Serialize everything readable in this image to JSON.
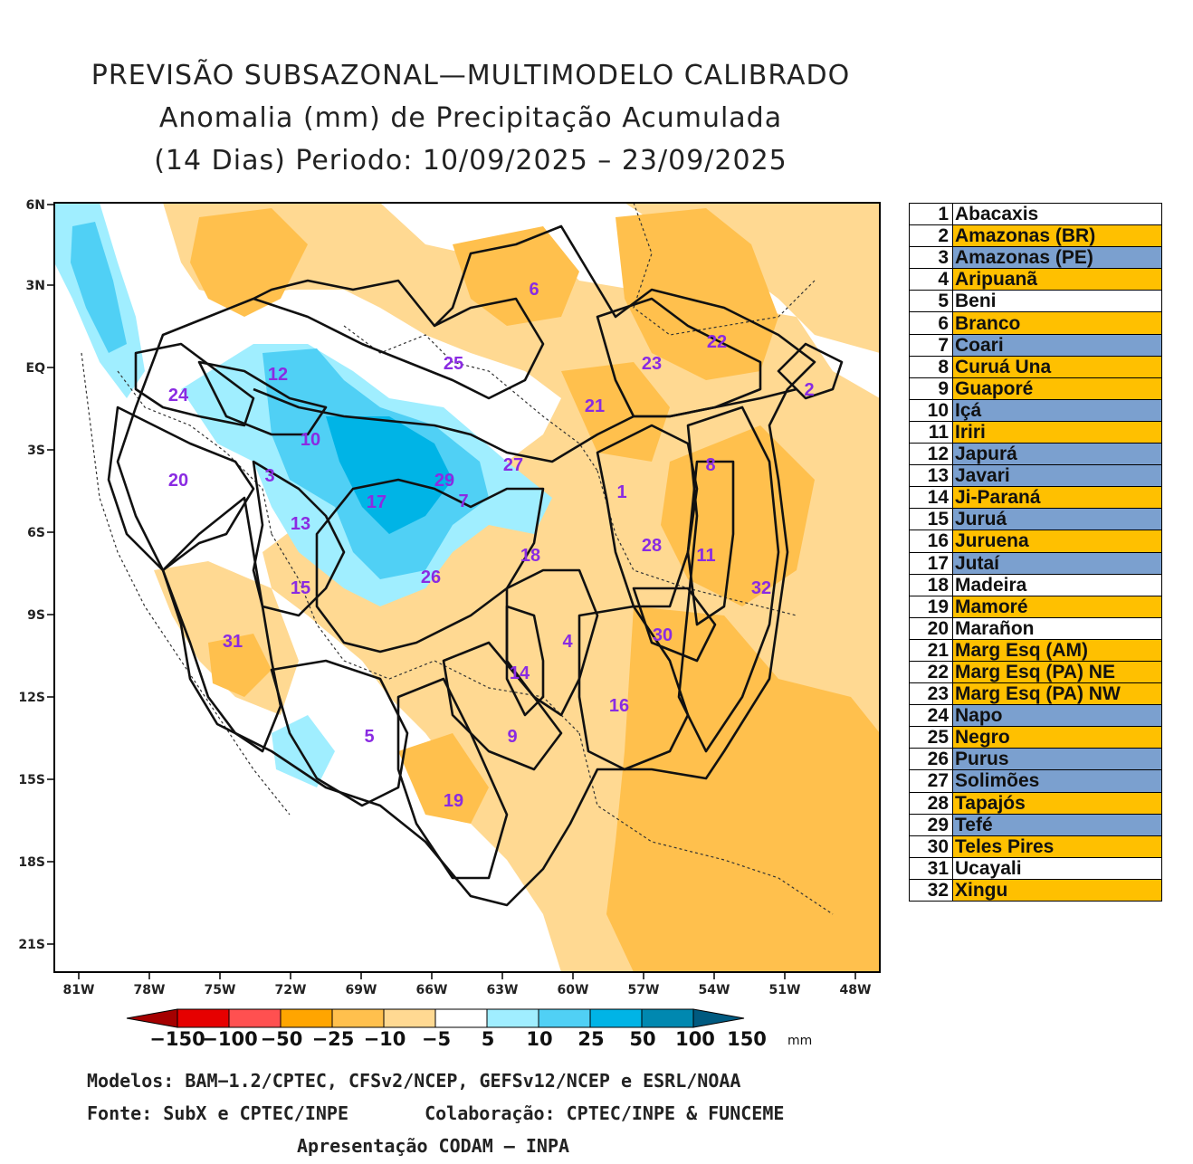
{
  "title": {
    "line1": "PREVISÃO SUBSAZONAL—MULTIMODELO CALIBRADO",
    "line2": "Anomalia (mm) de Precipitação Acumulada",
    "line3": "(14 Dias) Periodo: 10/09/2025 – 23/09/2025"
  },
  "map": {
    "lat_labels": [
      "6N",
      "3N",
      "EQ",
      "3S",
      "6S",
      "9S",
      "12S",
      "15S",
      "18S",
      "21S"
    ],
    "lon_labels": [
      "81W",
      "78W",
      "75W",
      "72W",
      "69W",
      "66W",
      "63W",
      "60W",
      "57W",
      "54W",
      "51W",
      "48W"
    ],
    "region_labels": [
      "1",
      "2",
      "3",
      "4",
      "5",
      "6",
      "7",
      "8",
      "9",
      "10",
      "11",
      "12",
      "13",
      "14",
      "15",
      "16",
      "17",
      "18",
      "19",
      "20",
      "21",
      "22",
      "23",
      "24",
      "25",
      "26",
      "27",
      "28",
      "29",
      "30",
      "31",
      "32"
    ],
    "label_color": "#8a2be2"
  },
  "legend_rows": [
    {
      "num": "1",
      "name": "Abacaxis",
      "color": "#ffffff"
    },
    {
      "num": "2",
      "name": "Amazonas (BR)",
      "color": "#ffc000"
    },
    {
      "num": "3",
      "name": "Amazonas (PE)",
      "color": "#7ba0cf"
    },
    {
      "num": "4",
      "name": "Aripuanã",
      "color": "#ffc000"
    },
    {
      "num": "5",
      "name": "Beni",
      "color": "#ffffff"
    },
    {
      "num": "6",
      "name": "Branco",
      "color": "#ffc000"
    },
    {
      "num": "7",
      "name": "Coari",
      "color": "#7ba0cf"
    },
    {
      "num": "8",
      "name": "Curuá Una",
      "color": "#ffc000"
    },
    {
      "num": "9",
      "name": "Guaporé",
      "color": "#ffc000"
    },
    {
      "num": "10",
      "name": "Içá",
      "color": "#7ba0cf"
    },
    {
      "num": "11",
      "name": "Iriri",
      "color": "#ffc000"
    },
    {
      "num": "12",
      "name": "Japurá",
      "color": "#7ba0cf"
    },
    {
      "num": "13",
      "name": "Javari",
      "color": "#7ba0cf"
    },
    {
      "num": "14",
      "name": "Ji-Paraná",
      "color": "#ffc000"
    },
    {
      "num": "15",
      "name": "Juruá",
      "color": "#7ba0cf"
    },
    {
      "num": "16",
      "name": "Juruena",
      "color": "#ffc000"
    },
    {
      "num": "17",
      "name": "Jutaí",
      "color": "#7ba0cf"
    },
    {
      "num": "18",
      "name": "Madeira",
      "color": "#ffffff"
    },
    {
      "num": "19",
      "name": "Mamoré",
      "color": "#ffc000"
    },
    {
      "num": "20",
      "name": "Marañon",
      "color": "#ffffff"
    },
    {
      "num": "21",
      "name": "Marg Esq (AM)",
      "color": "#ffc000"
    },
    {
      "num": "22",
      "name": "Marg Esq (PA) NE",
      "color": "#ffc000"
    },
    {
      "num": "23",
      "name": "Marg Esq (PA) NW",
      "color": "#ffc000"
    },
    {
      "num": "24",
      "name": "Napo",
      "color": "#7ba0cf"
    },
    {
      "num": "25",
      "name": "Negro",
      "color": "#ffc000"
    },
    {
      "num": "26",
      "name": "Purus",
      "color": "#7ba0cf"
    },
    {
      "num": "27",
      "name": "Solimões",
      "color": "#7ba0cf"
    },
    {
      "num": "28",
      "name": "Tapajós",
      "color": "#ffc000"
    },
    {
      "num": "29",
      "name": "Tefé",
      "color": "#7ba0cf"
    },
    {
      "num": "30",
      "name": "Teles Pires",
      "color": "#ffc000"
    },
    {
      "num": "31",
      "name": "Ucayali",
      "color": "#ffffff"
    },
    {
      "num": "32",
      "name": "Xingu",
      "color": "#ffc000"
    }
  ],
  "colorbar": {
    "labels": [
      "−150",
      "−100",
      "−50",
      "−25",
      "−10",
      "−5",
      "5",
      "10",
      "25",
      "50",
      "100",
      "150"
    ],
    "unit": "mm",
    "colors": [
      "#a50000",
      "#e60000",
      "#ff5050",
      "#ffa500",
      "#ffc04d",
      "#ffd992",
      "#ffffff",
      "#a0eeff",
      "#50d0f5",
      "#00b4e6",
      "#0088b0",
      "#005a80"
    ]
  },
  "footer": {
    "models": "Modelos: BAM−1.2/CPTEC, CFSv2/NCEP, GEFSv12/NCEP e ESRL/NOAA",
    "source": "Fonte: SubX e CPTEC/INPE",
    "collab": "Colaboração: CPTEC/INPE & FUNCEME",
    "presentation": "Apresentação CODAM – INPA"
  }
}
